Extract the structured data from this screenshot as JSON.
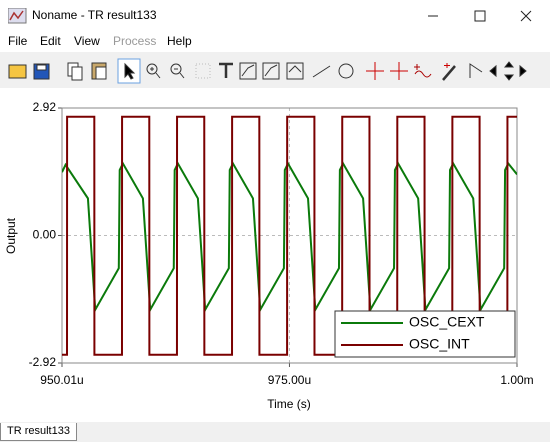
{
  "window": {
    "title": "Noname - TR result133",
    "menu": [
      "File",
      "Edit",
      "View",
      "Process",
      "Help"
    ],
    "tab": "TR result133"
  },
  "chart_data": {
    "type": "line",
    "xlabel": "Time (s)",
    "ylabel": "Output",
    "xlim": [
      0.00095001,
      0.001
    ],
    "ylim": [
      -2.92,
      2.92
    ],
    "xticks": [
      {
        "value": 0.00095001,
        "label": "950.01u"
      },
      {
        "value": 0.000975,
        "label": "975.00u"
      },
      {
        "value": 0.001,
        "label": "1.00m"
      }
    ],
    "yticks": [
      -2.92,
      {
        "value": 0,
        "label": "0.00"
      },
      2.92
    ],
    "grid": true,
    "legend": "lower right",
    "series": [
      {
        "name": "OSC_CEXT",
        "color": "#0b7a0b",
        "x": [
          0.00095001,
          0.0009504,
          0.00095286,
          0.00095366,
          0.00095625,
          0.00095635,
          0.0009567,
          0.0009589,
          0.0009597,
          0.00096229,
          0.00096239,
          0.00096274,
          0.00096494,
          0.00096574,
          0.00096834,
          0.00096844,
          0.00096879,
          0.00097099,
          0.00097179,
          0.00097439,
          0.00097449,
          0.00097484,
          0.00097704,
          0.00097784,
          0.00098044,
          0.00098054,
          0.00098089,
          0.00098309,
          0.00098389,
          0.00098649,
          0.00098659,
          0.00098694,
          0.00098914,
          0.00098994,
          0.00099254,
          0.00099264,
          0.00099299,
          0.00099519,
          0.00099599,
          0.00099859,
          0.00099869,
          0.00099904,
          0.001
        ],
        "values": [
          1.45,
          1.62,
          0.85,
          -1.7,
          -0.75,
          1.5,
          1.65,
          0.85,
          -1.7,
          -0.75,
          1.5,
          1.65,
          0.85,
          -1.7,
          -0.75,
          1.5,
          1.65,
          0.85,
          -1.7,
          -0.75,
          1.5,
          1.65,
          0.85,
          -1.7,
          -0.75,
          1.5,
          1.65,
          0.85,
          -1.7,
          -0.75,
          1.5,
          1.65,
          0.85,
          -1.7,
          -0.75,
          1.5,
          1.65,
          0.85,
          -1.7,
          -0.75,
          1.5,
          1.65,
          1.4
        ]
      },
      {
        "name": "OSC_INT",
        "color": "#7a0000",
        "x": [
          0.00095001,
          0.00095056,
          0.00095057,
          0.00095356,
          0.00095357,
          0.0009566,
          0.00095661,
          0.0009596,
          0.00095961,
          0.00096264,
          0.00096265,
          0.00096564,
          0.00096565,
          0.00096869,
          0.0009687,
          0.00097169,
          0.0009717,
          0.00097474,
          0.00097475,
          0.00097774,
          0.00097775,
          0.00098079,
          0.0009808,
          0.00098379,
          0.0009838,
          0.00098684,
          0.00098685,
          0.00098984,
          0.00098985,
          0.00099289,
          0.0009929,
          0.00099589,
          0.0009959,
          0.00099894,
          0.00099895,
          0.001
        ],
        "values": [
          -2.73,
          -2.73,
          2.72,
          2.72,
          -2.73,
          -2.73,
          2.72,
          2.72,
          -2.73,
          -2.73,
          2.72,
          2.72,
          -2.73,
          -2.73,
          2.72,
          2.72,
          -2.73,
          -2.73,
          2.72,
          2.72,
          -2.73,
          -2.73,
          2.72,
          2.72,
          -2.73,
          -2.73,
          2.72,
          2.72,
          -2.73,
          -2.73,
          2.72,
          2.72,
          -2.73,
          -2.73,
          2.72,
          2.72
        ]
      }
    ]
  }
}
